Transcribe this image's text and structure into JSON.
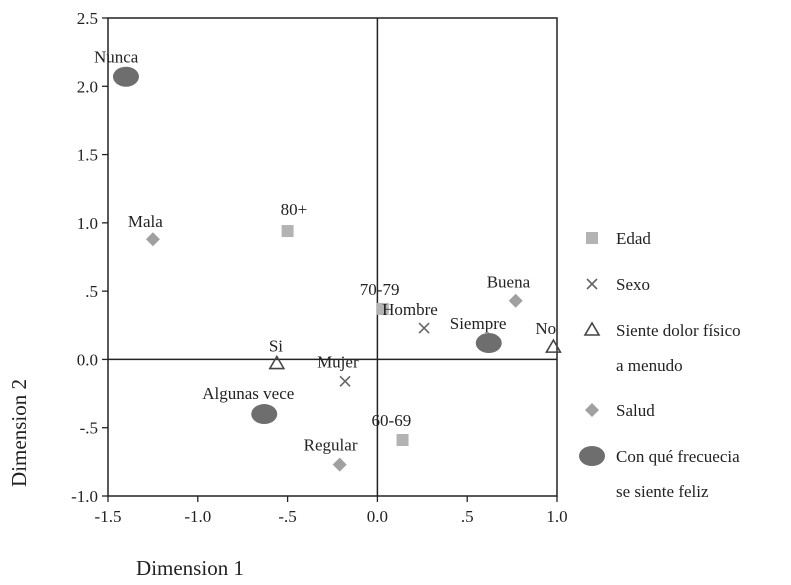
{
  "chart_data": {
    "type": "scatter",
    "xlabel": "Dimension 1",
    "ylabel": "Dimension 2",
    "xlim": [
      -1.5,
      1.0
    ],
    "ylim": [
      -1.0,
      2.5
    ],
    "x_ticks": [
      {
        "value": -1.5,
        "label": "-1.5"
      },
      {
        "value": -1.0,
        "label": "-1.0"
      },
      {
        "value": -0.5,
        "label": "-.5"
      },
      {
        "value": 0.0,
        "label": "0.0"
      },
      {
        "value": 0.5,
        "label": ".5"
      },
      {
        "value": 1.0,
        "label": "1.0"
      }
    ],
    "y_ticks": [
      {
        "value": 2.5,
        "label": "2.5"
      },
      {
        "value": 2.0,
        "label": "2.0"
      },
      {
        "value": 1.5,
        "label": "1.5"
      },
      {
        "value": 1.0,
        "label": "1.0"
      },
      {
        "value": 0.5,
        "label": ".5"
      },
      {
        "value": 0.0,
        "label": "0.0"
      },
      {
        "value": -0.5,
        "label": "-.5"
      },
      {
        "value": -1.0,
        "label": "-1.0"
      }
    ],
    "reference_lines": {
      "x": 0,
      "y": 0
    },
    "legend_position": "right",
    "series": [
      {
        "name": "Edad",
        "marker": "square",
        "color": "#b3b3b3",
        "points": [
          {
            "label": "80+",
            "x": -0.5,
            "y": 0.94
          },
          {
            "label": "70-79",
            "x": 0.03,
            "y": 0.37
          },
          {
            "label": "60-69",
            "x": 0.14,
            "y": -0.59
          }
        ]
      },
      {
        "name": "Sexo",
        "marker": "cross",
        "color": "#666666",
        "points": [
          {
            "label": "Hombre",
            "x": 0.26,
            "y": 0.23
          },
          {
            "label": "Mujer",
            "x": -0.18,
            "y": -0.16
          }
        ]
      },
      {
        "name": "Siente dolor físico a menudo",
        "marker": "triangle",
        "color": "#444444",
        "points": [
          {
            "label": "Si",
            "x": -0.56,
            "y": -0.03
          },
          {
            "label": "No",
            "x": 0.98,
            "y": 0.09
          }
        ]
      },
      {
        "name": "Salud",
        "marker": "diamond",
        "color": "#a0a0a0",
        "points": [
          {
            "label": "Mala",
            "x": -1.25,
            "y": 0.88
          },
          {
            "label": "Buena",
            "x": 0.77,
            "y": 0.43
          },
          {
            "label": "Regular",
            "x": -0.21,
            "y": -0.77
          }
        ]
      },
      {
        "name": "Con qué frecuecia se siente feliz",
        "marker": "circle",
        "color": "#6e6e6e",
        "points": [
          {
            "label": "Nunca",
            "x": -1.4,
            "y": 2.07
          },
          {
            "label": "Siempre",
            "x": 0.62,
            "y": 0.12
          },
          {
            "label": "Algunas vece",
            "x": -0.63,
            "y": -0.4
          }
        ]
      }
    ],
    "legend": [
      {
        "marker": "square",
        "color": "#b3b3b3",
        "lines": [
          "Edad"
        ]
      },
      {
        "marker": "cross",
        "color": "#666666",
        "lines": [
          "Sexo"
        ]
      },
      {
        "marker": "triangle",
        "color": "#444444",
        "lines": [
          "Siente dolor físico",
          "a menudo"
        ]
      },
      {
        "marker": "diamond",
        "color": "#a0a0a0",
        "lines": [
          "Salud"
        ]
      },
      {
        "marker": "circle",
        "color": "#6e6e6e",
        "lines": [
          "Con qué frecuecia",
          "se siente feliz"
        ]
      }
    ]
  }
}
